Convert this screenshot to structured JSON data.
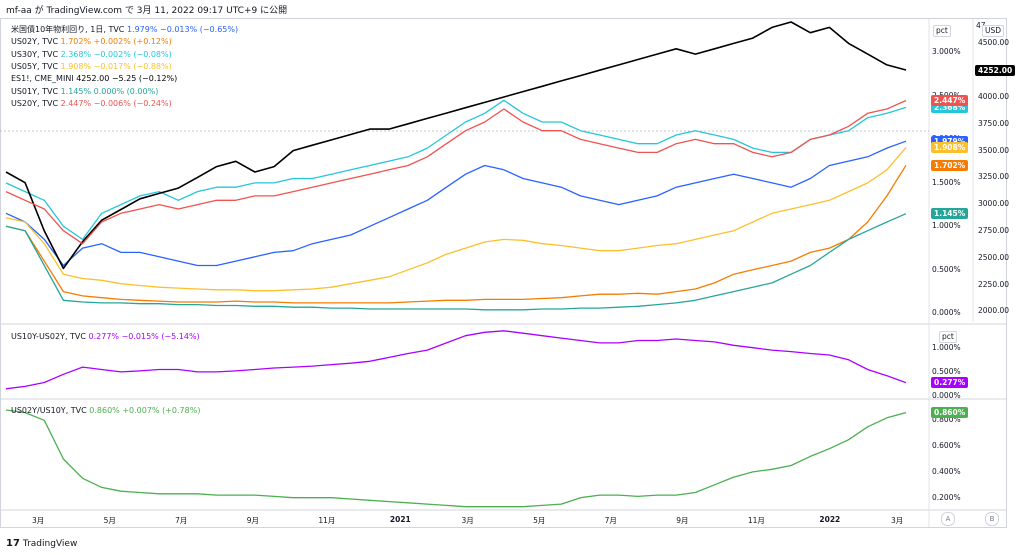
{
  "header": {
    "publisher": "mf-aa が TradingView.com で 3月 11, 2022 09:17 UTC+9 に公開"
  },
  "footer": {
    "brand": "TradingView",
    "logo": "17"
  },
  "controls": {
    "auto": "A",
    "log": "B"
  },
  "chart_data": [
    {
      "type": "line",
      "panel": "main",
      "x_labels": [
        "3月",
        "5月",
        "7月",
        "9月",
        "11月",
        "2021",
        "3月",
        "5月",
        "7月",
        "9月",
        "11月",
        "2022",
        "3月"
      ],
      "left_scale_label": "pct",
      "left_ticks": [
        "3.000%",
        "2.500%",
        "2.000%",
        "1.500%",
        "1.000%",
        "0.500%",
        "0.000%"
      ],
      "left_ylim": [
        -0.1,
        3.35
      ],
      "right_scale_label": "USD",
      "right_ticks": [
        "4500.00",
        "4250.00",
        "4000.00",
        "3750.00",
        "3500.00",
        "3250.00",
        "3000.00",
        "2750.00",
        "2500.00",
        "2250.00",
        "2000.00"
      ],
      "right_ylim": [
        1900,
        4700
      ],
      "right_top_partial": "47",
      "series": [
        {
          "id": "us10y",
          "label": "米国債10年物利回り, 1日, TVC",
          "last": "1.979%",
          "change": "−0.013%",
          "change_pct": "(−0.65%)",
          "color": "#2962ff",
          "axis": "left",
          "badge": "1.979%",
          "values": [
            1.15,
            1.05,
            0.85,
            0.55,
            0.75,
            0.8,
            0.7,
            0.7,
            0.65,
            0.6,
            0.55,
            0.55,
            0.6,
            0.65,
            0.7,
            0.72,
            0.8,
            0.85,
            0.9,
            1.0,
            1.1,
            1.2,
            1.3,
            1.45,
            1.6,
            1.7,
            1.65,
            1.55,
            1.5,
            1.45,
            1.35,
            1.3,
            1.25,
            1.3,
            1.35,
            1.45,
            1.5,
            1.55,
            1.6,
            1.55,
            1.5,
            1.45,
            1.55,
            1.7,
            1.75,
            1.8,
            1.9,
            1.979
          ]
        },
        {
          "id": "us02y",
          "label": "US02Y, TVC",
          "last": "1.702%",
          "change": "+0.002%",
          "change_pct": "(+0.12%)",
          "color": "#f57c00",
          "axis": "left",
          "badge": "1.702%",
          "values": [
            1.0,
            0.95,
            0.6,
            0.25,
            0.2,
            0.18,
            0.16,
            0.15,
            0.14,
            0.13,
            0.13,
            0.13,
            0.14,
            0.13,
            0.13,
            0.12,
            0.12,
            0.12,
            0.12,
            0.12,
            0.12,
            0.13,
            0.14,
            0.15,
            0.15,
            0.16,
            0.16,
            0.16,
            0.17,
            0.18,
            0.2,
            0.22,
            0.22,
            0.23,
            0.22,
            0.25,
            0.28,
            0.35,
            0.45,
            0.5,
            0.55,
            0.6,
            0.7,
            0.75,
            0.85,
            1.05,
            1.35,
            1.702
          ]
        },
        {
          "id": "us30y",
          "label": "US30Y, TVC",
          "last": "2.368%",
          "change": "−0.002%",
          "change_pct": "(−0.08%)",
          "color": "#26c6da",
          "axis": "left",
          "badge": "2.368%",
          "values": [
            1.5,
            1.4,
            1.3,
            1.0,
            0.85,
            1.15,
            1.25,
            1.35,
            1.4,
            1.3,
            1.4,
            1.45,
            1.45,
            1.5,
            1.5,
            1.55,
            1.55,
            1.6,
            1.65,
            1.7,
            1.75,
            1.8,
            1.9,
            2.05,
            2.2,
            2.3,
            2.45,
            2.3,
            2.2,
            2.2,
            2.1,
            2.05,
            2.0,
            1.95,
            1.95,
            2.05,
            2.1,
            2.05,
            2.0,
            1.9,
            1.85,
            1.85,
            2.0,
            2.05,
            2.1,
            2.25,
            2.3,
            2.368
          ]
        },
        {
          "id": "us05y",
          "label": "US05Y, TVC",
          "last": "1.908%",
          "change": "−0.017%",
          "change_pct": "(−0.88%)",
          "color": "#fbc02d",
          "axis": "left",
          "badge": "1.908%",
          "values": [
            1.1,
            1.05,
            0.8,
            0.45,
            0.4,
            0.38,
            0.34,
            0.32,
            0.3,
            0.29,
            0.28,
            0.27,
            0.27,
            0.26,
            0.26,
            0.27,
            0.28,
            0.3,
            0.34,
            0.38,
            0.42,
            0.5,
            0.58,
            0.68,
            0.75,
            0.82,
            0.85,
            0.84,
            0.8,
            0.78,
            0.75,
            0.72,
            0.72,
            0.75,
            0.78,
            0.8,
            0.85,
            0.9,
            0.95,
            1.05,
            1.15,
            1.2,
            1.25,
            1.3,
            1.4,
            1.5,
            1.65,
            1.908
          ]
        },
        {
          "id": "es1",
          "label": "ES1!, CME_MINI",
          "last": "4252.00",
          "change": "−5.25",
          "change_pct": "(−0.12%)",
          "color": "#000000",
          "axis": "right",
          "badge": "4252.00",
          "values": [
            3300,
            3200,
            2750,
            2400,
            2650,
            2850,
            2950,
            3050,
            3100,
            3150,
            3250,
            3350,
            3400,
            3300,
            3350,
            3500,
            3550,
            3600,
            3650,
            3700,
            3700,
            3750,
            3800,
            3850,
            3900,
            3950,
            4000,
            4050,
            4100,
            4150,
            4200,
            4250,
            4300,
            4350,
            4400,
            4450,
            4400,
            4450,
            4500,
            4550,
            4650,
            4700,
            4600,
            4650,
            4500,
            4400,
            4300,
            4252
          ]
        },
        {
          "id": "us01y",
          "label": "US01Y, TVC",
          "last": "1.145%",
          "change": "0.000%",
          "change_pct": "(0.00%)",
          "color": "#26a69a",
          "axis": "left",
          "badge": "1.145%",
          "values": [
            1.0,
            0.95,
            0.55,
            0.15,
            0.13,
            0.12,
            0.12,
            0.11,
            0.11,
            0.1,
            0.1,
            0.09,
            0.09,
            0.08,
            0.08,
            0.07,
            0.07,
            0.06,
            0.06,
            0.05,
            0.05,
            0.05,
            0.05,
            0.05,
            0.05,
            0.04,
            0.04,
            0.04,
            0.05,
            0.05,
            0.06,
            0.06,
            0.07,
            0.08,
            0.1,
            0.12,
            0.15,
            0.2,
            0.25,
            0.3,
            0.35,
            0.45,
            0.55,
            0.7,
            0.85,
            0.95,
            1.05,
            1.145
          ]
        },
        {
          "id": "us20y",
          "label": "US20Y, TVC",
          "last": "2.447%",
          "change": "−0.006%",
          "change_pct": "(−0.24%)",
          "color": "#ef5350",
          "axis": "left",
          "badge": "2.447%",
          "values": [
            1.4,
            1.3,
            1.2,
            0.95,
            0.8,
            1.05,
            1.15,
            1.2,
            1.25,
            1.2,
            1.25,
            1.3,
            1.3,
            1.35,
            1.35,
            1.4,
            1.45,
            1.5,
            1.55,
            1.6,
            1.65,
            1.7,
            1.8,
            1.95,
            2.1,
            2.2,
            2.35,
            2.2,
            2.1,
            2.1,
            2.0,
            1.95,
            1.9,
            1.85,
            1.85,
            1.95,
            2.0,
            1.95,
            1.95,
            1.85,
            1.8,
            1.85,
            2.0,
            2.05,
            2.15,
            2.3,
            2.35,
            2.447
          ]
        }
      ]
    },
    {
      "type": "line",
      "panel": "spread",
      "scale_label": "pct",
      "ticks": [
        "1.000%",
        "0.500%",
        "0.000%"
      ],
      "ylim": [
        -0.02,
        1.45
      ],
      "series": [
        {
          "id": "us10y_us02y",
          "label": "US10Y-US02Y, TVC",
          "last": "0.277%",
          "change": "−0.015%",
          "change_pct": "(−5.14%)",
          "color": "#aa00ff",
          "badge": "0.277%",
          "values": [
            0.15,
            0.2,
            0.28,
            0.45,
            0.6,
            0.55,
            0.5,
            0.52,
            0.55,
            0.55,
            0.5,
            0.5,
            0.52,
            0.55,
            0.58,
            0.6,
            0.62,
            0.65,
            0.68,
            0.72,
            0.8,
            0.88,
            0.95,
            1.1,
            1.25,
            1.32,
            1.35,
            1.3,
            1.25,
            1.2,
            1.15,
            1.1,
            1.1,
            1.15,
            1.15,
            1.18,
            1.15,
            1.12,
            1.05,
            1.0,
            0.95,
            0.92,
            0.88,
            0.85,
            0.75,
            0.55,
            0.42,
            0.277
          ]
        }
      ]
    },
    {
      "type": "line",
      "panel": "ratio",
      "ticks": [
        "0.800%",
        "0.600%",
        "0.400%",
        "0.200%"
      ],
      "ylim": [
        0.12,
        0.95
      ],
      "series": [
        {
          "id": "us02y_us10y",
          "label": "US02Y/US10Y, TVC",
          "last": "0.860%",
          "change": "+0.007%",
          "change_pct": "(+0.78%)",
          "color": "#4caf50",
          "badge": "0.860%",
          "values": [
            0.88,
            0.86,
            0.8,
            0.5,
            0.35,
            0.28,
            0.25,
            0.24,
            0.23,
            0.23,
            0.23,
            0.22,
            0.22,
            0.22,
            0.21,
            0.2,
            0.2,
            0.2,
            0.19,
            0.18,
            0.17,
            0.16,
            0.15,
            0.14,
            0.13,
            0.13,
            0.13,
            0.13,
            0.14,
            0.15,
            0.2,
            0.22,
            0.22,
            0.21,
            0.22,
            0.22,
            0.24,
            0.3,
            0.36,
            0.4,
            0.42,
            0.45,
            0.52,
            0.58,
            0.65,
            0.75,
            0.82,
            0.86
          ]
        }
      ]
    }
  ]
}
